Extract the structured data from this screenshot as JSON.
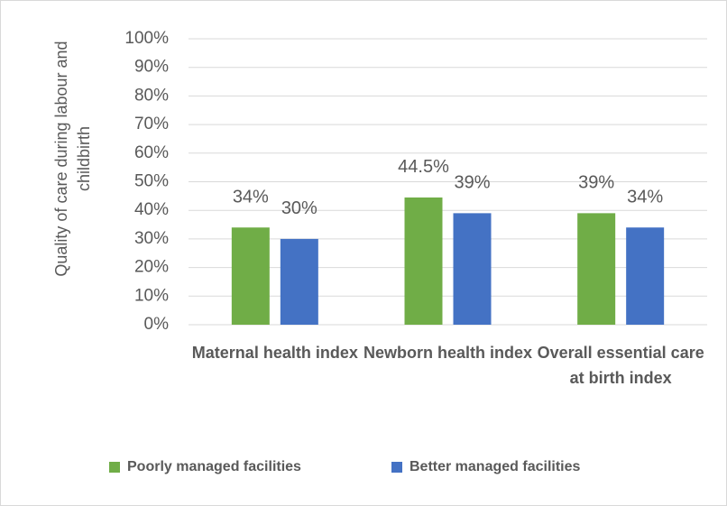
{
  "chart_data": {
    "type": "bar",
    "y_label": "Quality of care during labour and childbirth",
    "categories": [
      "Maternal health index",
      "Newborn health index",
      "Overall essential care at birth index"
    ],
    "series": [
      {
        "name": "Poorly managed facilities",
        "color": "#70ad47",
        "values": [
          34,
          44.5,
          39
        ],
        "value_labels": [
          "34%",
          "44.5%",
          "39%"
        ]
      },
      {
        "name": "Better managed facilities",
        "color": "#4472c4",
        "values": [
          30,
          39,
          34
        ],
        "value_labels": [
          "30%",
          "39%",
          "34%"
        ]
      }
    ],
    "ylim": [
      0,
      100
    ],
    "yticks": [
      {
        "value": 0,
        "label": "0%"
      },
      {
        "value": 10,
        "label": "10%"
      },
      {
        "value": 20,
        "label": "20%"
      },
      {
        "value": 30,
        "label": "30%"
      },
      {
        "value": 40,
        "label": "40%"
      },
      {
        "value": 50,
        "label": "50%"
      },
      {
        "value": 60,
        "label": "60%"
      },
      {
        "value": 70,
        "label": "70%"
      },
      {
        "value": 80,
        "label": "80%"
      },
      {
        "value": 90,
        "label": "90%"
      },
      {
        "value": 100,
        "label": "100%"
      }
    ],
    "grid": true,
    "legend": "bottom"
  }
}
